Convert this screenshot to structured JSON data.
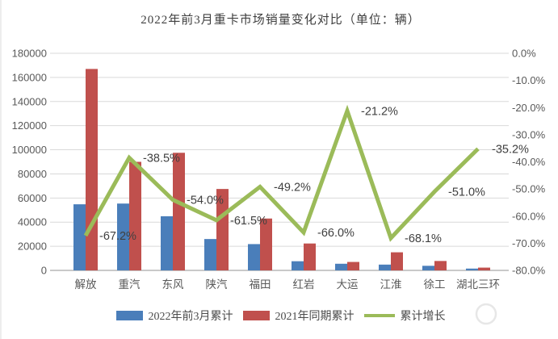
{
  "title_bar": {
    "title": "2022年前3月重卡市场销量变化对比（单位：辆）"
  },
  "chart_data": {
    "type": "combo-bar-line",
    "title": "2022年前3月重卡市场销量变化对比（单位：辆）",
    "categories": [
      "解放",
      "重汽",
      "东风",
      "陕汽",
      "福田",
      "红岩",
      "大运",
      "江淮",
      "徐工",
      "湖北三环"
    ],
    "series": [
      {
        "name": "2022年前3月累计",
        "type": "bar",
        "axis": "left",
        "color": "#4a7eba",
        "values": [
          54800,
          55400,
          44900,
          26000,
          21800,
          7600,
          5500,
          4800,
          3800,
          1500
        ]
      },
      {
        "name": "2021年同期累计",
        "type": "bar",
        "axis": "left",
        "color": "#c0504d",
        "values": [
          167000,
          90000,
          97500,
          67500,
          43000,
          22300,
          7000,
          15000,
          7800,
          2300
        ]
      },
      {
        "name": "累计增长",
        "type": "line",
        "axis": "right",
        "color": "#9bbb59",
        "values": [
          -67.2,
          -38.5,
          -54.0,
          -61.5,
          -49.2,
          -66.0,
          -21.2,
          -68.1,
          -51.0,
          -35.2
        ],
        "labels": [
          "-67.2%",
          "-38.5%",
          "-54.0%",
          "-61.5%",
          "-49.2%",
          "-66.0%",
          "-21.2%",
          "-68.1%",
          "-51.0%",
          "-35.2%"
        ]
      }
    ],
    "left_axis": {
      "min": 0,
      "max": 180000,
      "step": 20000,
      "tick_labels": [
        "180000",
        "160000",
        "140000",
        "120000",
        "100000",
        "80000",
        "60000",
        "40000",
        "20000",
        "0"
      ]
    },
    "right_axis": {
      "min": -80,
      "max": 0,
      "step": 10,
      "tick_labels": [
        "0.0%",
        "-10.0%",
        "-20.0%",
        "-30.0%",
        "-40.0%",
        "-50.0%",
        "-60.0%",
        "-70.0%",
        "-80.0%"
      ]
    },
    "grid": true,
    "grid_color": "#d9d9d9",
    "baseline_color": "#c9c9c9",
    "axis_text_color": "#595959",
    "data_label_color": "#404040",
    "legend_position": "bottom"
  }
}
